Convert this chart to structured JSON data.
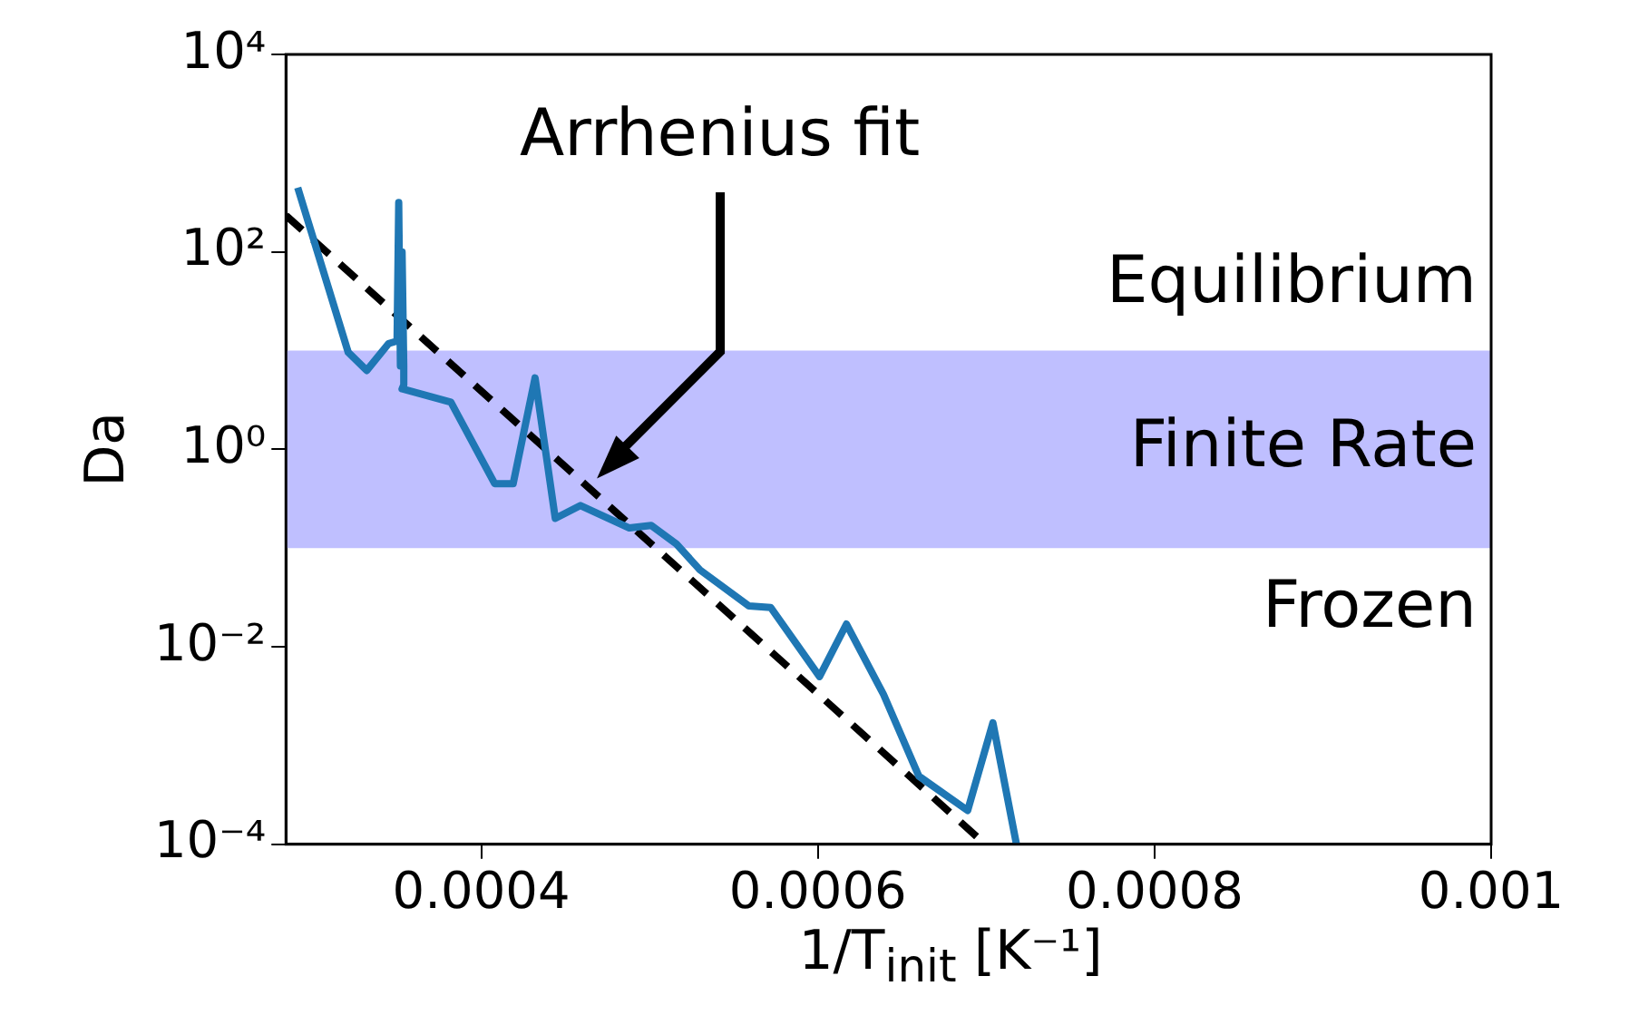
{
  "chart_data": {
    "type": "line",
    "xlabel": "1/T$_{init}$ [K⁻¹]",
    "ylabel": "Da",
    "log": "y",
    "xlim": [
      0.000284,
      0.001
    ],
    "xticks": [
      0.0004,
      0.0006,
      0.0008,
      0.001
    ],
    "ylim": [
      0.0001,
      10000
    ],
    "yticks": [
      {
        "value": 0.0001,
        "label": "10⁻⁴"
      },
      {
        "value": 0.01,
        "label": "10⁻²"
      },
      {
        "value": 1,
        "label": "10⁰"
      },
      {
        "value": 100,
        "label": "10²"
      },
      {
        "value": 10000,
        "label": "10⁴"
      }
    ],
    "grid": false,
    "legend": false,
    "series": [
      {
        "color": "#1f77b4",
        "line_style": "solid",
        "x": [
          0.000291,
          0.000321,
          0.000332,
          0.000345,
          0.00035,
          0.000351,
          0.000352,
          0.000353,
          0.000354,
          0.000354,
          0.000353,
          0.000382,
          0.000408,
          0.000419,
          0.000432,
          0.000444,
          0.000459,
          0.000488,
          0.000501,
          0.000516,
          0.00053,
          0.000559,
          0.000572,
          0.000601,
          0.000617,
          0.000639,
          0.00066,
          0.000689,
          0.000704,
          0.000718
        ],
        "values": [
          447,
          9.6,
          6.3,
          11.8,
          12.5,
          316,
          7,
          100,
          7,
          4.5,
          4.1,
          3.0,
          0.45,
          0.45,
          5.3,
          0.2,
          0.27,
          0.16,
          0.17,
          0.11,
          0.06,
          0.026,
          0.025,
          0.005,
          0.017,
          0.0033,
          0.00049,
          0.00022,
          0.0017,
          0.0001
        ]
      },
      {
        "type": "line",
        "color": "#000000",
        "line_style": "dashed",
        "x": [
          0.000284,
          0.0006995
        ],
        "values": [
          234,
          0.0001
        ]
      }
    ],
    "bands": [
      {
        "axis": "y",
        "from": 0.1,
        "to": 10,
        "label": "Finite Rate",
        "color": "#bfbfff"
      }
    ],
    "annotations": [
      "Arrhenius fit",
      "Equilibrium",
      "Frozen"
    ]
  }
}
